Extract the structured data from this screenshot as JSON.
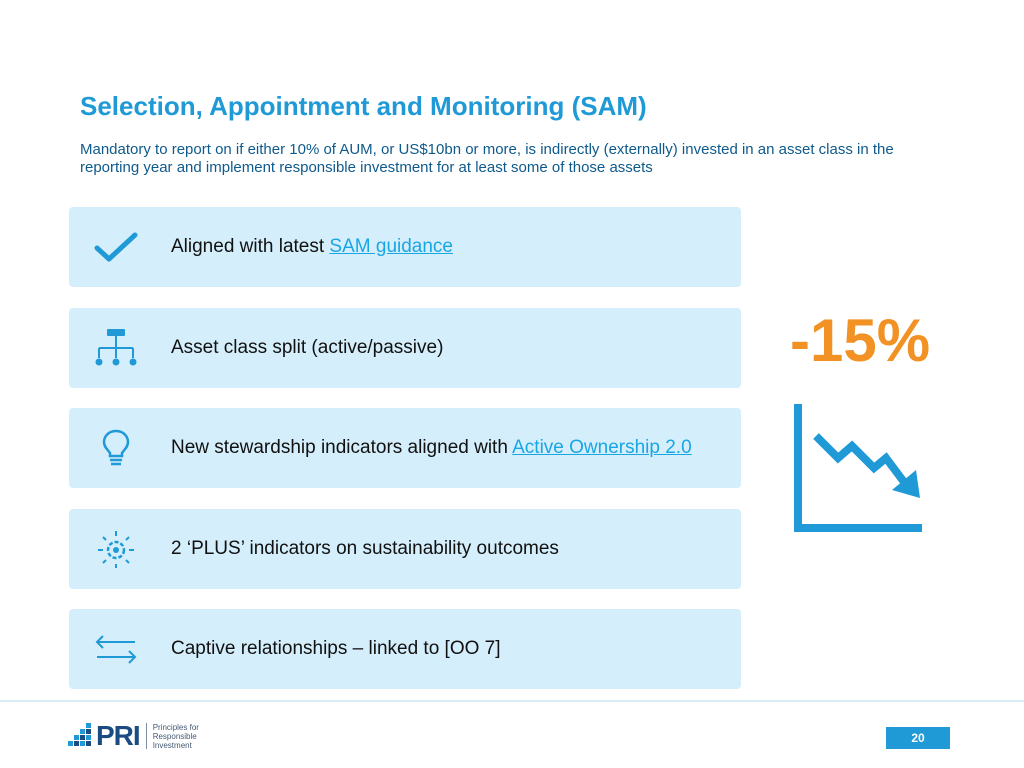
{
  "slide": {
    "title": "Selection, Appointment and Monitoring (SAM)",
    "subtitle": "Mandatory to report on if either 10% of AUM, or US$10bn or more, is indirectly (externally) invested in an asset class in the reporting year and implement responsible investment for at least some of those assets"
  },
  "items": [
    {
      "icon": "checkmark-icon",
      "text": "Aligned with latest ",
      "link": "SAM guidance",
      "after": ""
    },
    {
      "icon": "hierarchy-icon",
      "text": "Asset class split (active/passive)",
      "link": "",
      "after": ""
    },
    {
      "icon": "lightbulb-icon",
      "text": "New stewardship indicators aligned with ",
      "link": "Active Ownership 2.0",
      "after": ""
    },
    {
      "icon": "gear-sparkle-icon",
      "text": "2 ‘PLUS’ indicators on sustainability outcomes",
      "link": "",
      "after": ""
    },
    {
      "icon": "swap-arrows-icon",
      "text": "Captive relationships – linked to [OO 7]",
      "link": "",
      "after": ""
    }
  ],
  "stat": {
    "value": "-15%",
    "icon": "downtrend-chart-icon",
    "color": "#f29224"
  },
  "footer": {
    "logo_text": "PRI",
    "tagline": [
      "Principles for",
      "Responsible",
      "Investment"
    ],
    "page_number": "20"
  },
  "colors": {
    "accent": "#1f9ad6",
    "card_bg": "#d5eefb",
    "link": "#19a6e5",
    "subtitle": "#0f5a8c"
  }
}
